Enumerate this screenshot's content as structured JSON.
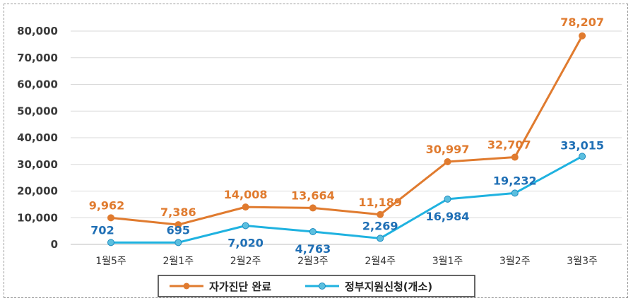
{
  "chart_data": {
    "type": "line",
    "categories": [
      "1월5주",
      "2월1주",
      "2월2주",
      "2월3주",
      "2월4주",
      "3월1주",
      "3월2주",
      "3월3주"
    ],
    "series": [
      {
        "name": "자가진단 완료",
        "color": "#E07B2F",
        "values": [
          9962,
          7386,
          14008,
          13664,
          11189,
          30997,
          32707,
          78207
        ],
        "labels": [
          "9,962",
          "7,386",
          "14,008",
          "13,664",
          "11,189",
          "30,997",
          "32,707",
          "78,207"
        ]
      },
      {
        "name": "정부지원신청(개소)",
        "color": "#1FB2E0",
        "label_color": "#1F6FB5",
        "values": [
          702,
          695,
          7020,
          4763,
          2269,
          16984,
          19232,
          33015
        ],
        "labels": [
          "702",
          "695",
          "7,020",
          "4,763",
          "2,269",
          "16,984",
          "19,232",
          "33,015"
        ]
      }
    ],
    "yticks": [
      "0",
      "10,000",
      "20,000",
      "30,000",
      "40,000",
      "50,000",
      "60,000",
      "70,000",
      "80,000"
    ],
    "ylim": [
      0,
      80000
    ],
    "grid": true,
    "legend": "bottom-center"
  }
}
